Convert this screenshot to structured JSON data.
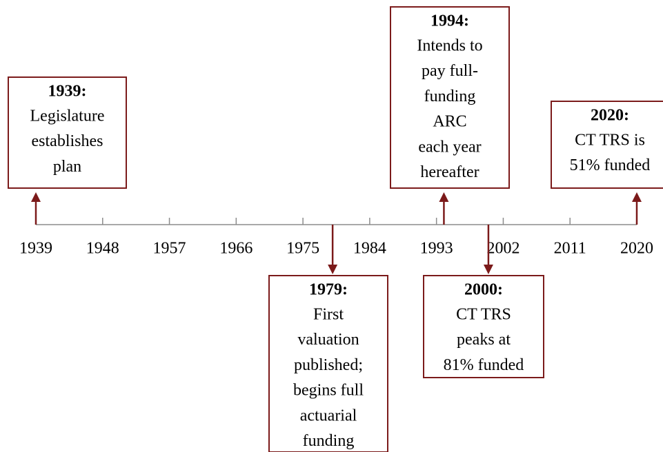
{
  "chart_data": {
    "type": "timeline",
    "xlim": [
      1939,
      2020
    ],
    "xticks": [
      1939,
      1948,
      1957,
      1966,
      1975,
      1984,
      1993,
      2002,
      2011,
      2020
    ],
    "color": "#7b1a1a",
    "axis_color": "#8c8c8c",
    "events": [
      {
        "x": 1939,
        "title": "1939:",
        "lines": [
          "Legislature",
          "establishes",
          "plan"
        ]
      },
      {
        "x": 1979,
        "title": "1979:",
        "lines": [
          "First",
          "valuation",
          "published;",
          "begins full",
          "actuarial",
          "funding"
        ]
      },
      {
        "x": 1994,
        "title": "1994:",
        "lines": [
          "Intends to",
          "pay full-",
          "funding",
          "ARC",
          "each year",
          "hereafter"
        ]
      },
      {
        "x": 2000,
        "title": "2000:",
        "lines": [
          "CT TRS",
          "peaks at",
          "81% funded"
        ]
      },
      {
        "x": 2020,
        "title": "2020:",
        "lines": [
          "CT TRS is",
          "51% funded"
        ]
      }
    ]
  }
}
